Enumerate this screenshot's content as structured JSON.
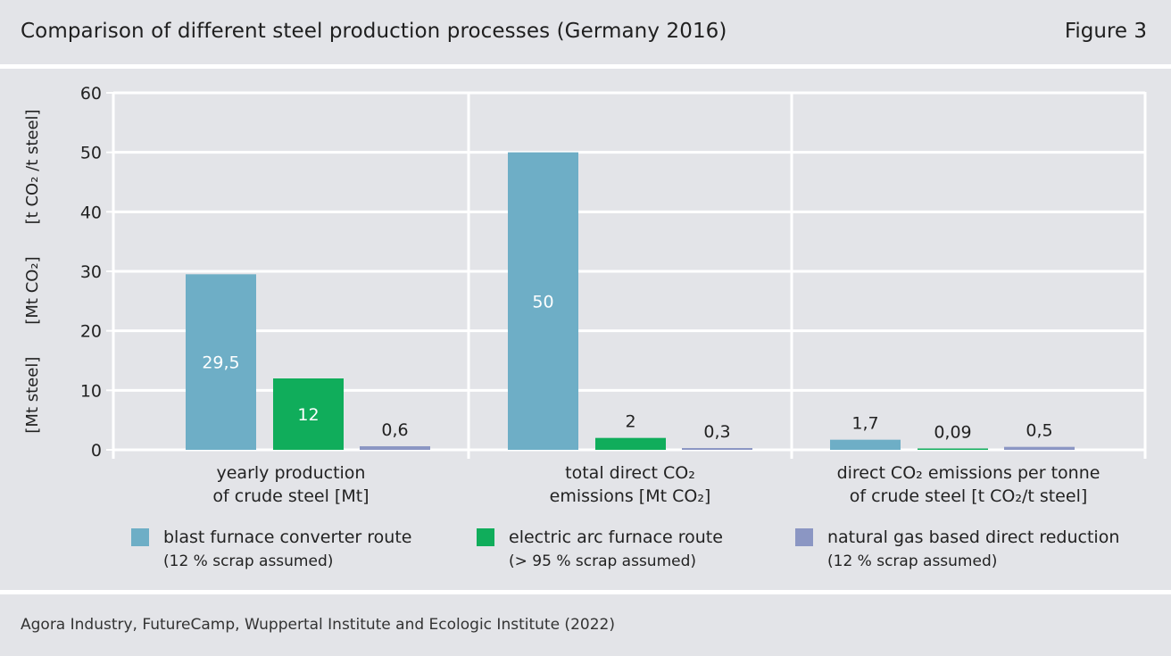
{
  "header": {
    "title": "Comparison of different steel production processes (Germany 2016)",
    "figure_label": "Figure 3"
  },
  "footer": {
    "source": "Agora Industry, FutureCamp, Wuppertal Institute and Ecologic Institute (2022)"
  },
  "chart_data": {
    "type": "bar",
    "title": "Comparison of different steel production processes (Germany 2016)",
    "ylim": [
      0,
      60
    ],
    "yticks": [
      0,
      10,
      20,
      30,
      40,
      50,
      60
    ],
    "ylabels": [
      "[Mt steel]",
      "[Mt CO₂]",
      "[t CO₂ /t steel]"
    ],
    "grid": true,
    "categories": [
      [
        "yearly production",
        "of crude steel [Mt]"
      ],
      [
        "total direct CO₂",
        "emissions [Mt CO₂]"
      ],
      [
        "direct CO₂ emissions per tonne",
        "of crude steel [t CO₂/t steel]"
      ]
    ],
    "series": [
      {
        "name": "blast furnace converter route",
        "note": "(12 % scrap assumed)",
        "color": "#6eaec6",
        "values": [
          29.5,
          50,
          1.7
        ],
        "labels": [
          "29,5",
          "50",
          "1,7"
        ],
        "label_inside": [
          true,
          true,
          false
        ]
      },
      {
        "name": "electric arc furnace route",
        "note": "(> 95 % scrap assumed)",
        "color": "#10ad5b",
        "values": [
          12,
          2,
          0.09
        ],
        "labels": [
          "12",
          "2",
          "0,09"
        ],
        "label_inside": [
          true,
          false,
          false
        ]
      },
      {
        "name": "natural gas based direct reduction",
        "note": "(12 % scrap assumed)",
        "color": "#8b96c3",
        "values": [
          0.6,
          0.3,
          0.5
        ],
        "labels": [
          "0,6",
          "0,3",
          "0,5"
        ],
        "label_inside": [
          false,
          false,
          false
        ]
      }
    ],
    "legend_position": "bottom"
  }
}
